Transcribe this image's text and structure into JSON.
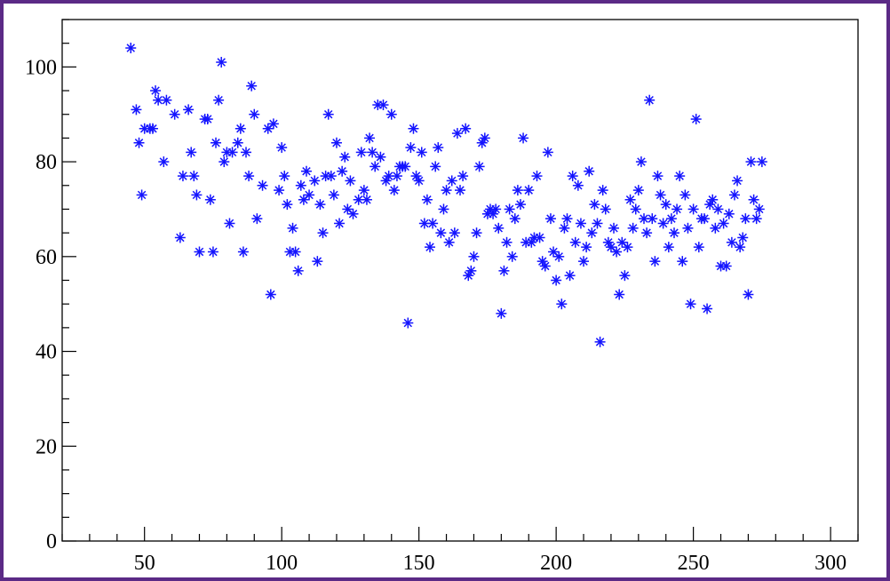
{
  "chart_data": {
    "type": "scatter",
    "title": "",
    "xlabel": "",
    "ylabel": "",
    "xlim": [
      20,
      310
    ],
    "ylim": [
      0,
      110
    ],
    "x_ticks": [
      50,
      100,
      150,
      200,
      250,
      300
    ],
    "y_ticks": [
      0,
      20,
      40,
      60,
      80,
      100
    ],
    "x_tick_labels": [
      "50",
      "100",
      "150",
      "200",
      "250",
      "300"
    ],
    "y_tick_labels": [
      "0",
      "20",
      "40",
      "60",
      "80",
      "100"
    ],
    "grid": false,
    "marker": "asterisk",
    "marker_color": "#1414ff",
    "frame_color": "#5b2a86",
    "series": [
      {
        "points": [
          [
            45,
            104
          ],
          [
            47,
            91
          ],
          [
            48,
            84
          ],
          [
            49,
            73
          ],
          [
            50,
            87
          ],
          [
            52,
            87
          ],
          [
            53,
            87
          ],
          [
            54,
            95
          ],
          [
            55,
            93
          ],
          [
            57,
            80
          ],
          [
            58,
            93
          ],
          [
            61,
            90
          ],
          [
            63,
            64
          ],
          [
            64,
            77
          ],
          [
            66,
            91
          ],
          [
            67,
            82
          ],
          [
            68,
            77
          ],
          [
            69,
            73
          ],
          [
            70,
            61
          ],
          [
            72,
            89
          ],
          [
            73,
            89
          ],
          [
            74,
            72
          ],
          [
            75,
            61
          ],
          [
            76,
            84
          ],
          [
            77,
            93
          ],
          [
            78,
            101
          ],
          [
            79,
            80
          ],
          [
            80,
            82
          ],
          [
            81,
            67
          ],
          [
            82,
            82
          ],
          [
            84,
            84
          ],
          [
            85,
            87
          ],
          [
            86,
            61
          ],
          [
            87,
            82
          ],
          [
            88,
            77
          ],
          [
            89,
            96
          ],
          [
            90,
            90
          ],
          [
            91,
            68
          ],
          [
            93,
            75
          ],
          [
            95,
            87
          ],
          [
            96,
            52
          ],
          [
            97,
            88
          ],
          [
            99,
            74
          ],
          [
            100,
            83
          ],
          [
            101,
            77
          ],
          [
            102,
            71
          ],
          [
            103,
            61
          ],
          [
            104,
            66
          ],
          [
            105,
            61
          ],
          [
            106,
            57
          ],
          [
            107,
            75
          ],
          [
            108,
            72
          ],
          [
            109,
            78
          ],
          [
            110,
            73
          ],
          [
            112,
            76
          ],
          [
            113,
            59
          ],
          [
            114,
            71
          ],
          [
            115,
            65
          ],
          [
            116,
            77
          ],
          [
            117,
            90
          ],
          [
            118,
            77
          ],
          [
            119,
            73
          ],
          [
            120,
            84
          ],
          [
            121,
            67
          ],
          [
            122,
            78
          ],
          [
            123,
            81
          ],
          [
            124,
            70
          ],
          [
            125,
            76
          ],
          [
            126,
            69
          ],
          [
            128,
            72
          ],
          [
            129,
            82
          ],
          [
            130,
            74
          ],
          [
            131,
            72
          ],
          [
            132,
            85
          ],
          [
            133,
            82
          ],
          [
            134,
            79
          ],
          [
            135,
            92
          ],
          [
            136,
            81
          ],
          [
            137,
            92
          ],
          [
            138,
            76
          ],
          [
            139,
            77
          ],
          [
            140,
            90
          ],
          [
            141,
            74
          ],
          [
            142,
            77
          ],
          [
            143,
            79
          ],
          [
            144,
            79
          ],
          [
            145,
            79
          ],
          [
            146,
            46
          ],
          [
            147,
            83
          ],
          [
            148,
            87
          ],
          [
            149,
            77
          ],
          [
            150,
            76
          ],
          [
            151,
            82
          ],
          [
            152,
            67
          ],
          [
            153,
            72
          ],
          [
            154,
            62
          ],
          [
            155,
            67
          ],
          [
            156,
            79
          ],
          [
            157,
            83
          ],
          [
            158,
            65
          ],
          [
            159,
            70
          ],
          [
            160,
            74
          ],
          [
            161,
            63
          ],
          [
            162,
            76
          ],
          [
            163,
            65
          ],
          [
            164,
            86
          ],
          [
            165,
            74
          ],
          [
            166,
            77
          ],
          [
            167,
            87
          ],
          [
            168,
            56
          ],
          [
            169,
            57
          ],
          [
            170,
            60
          ],
          [
            171,
            65
          ],
          [
            172,
            79
          ],
          [
            173,
            84
          ],
          [
            174,
            85
          ],
          [
            175,
            69
          ],
          [
            176,
            70
          ],
          [
            177,
            69
          ],
          [
            178,
            70
          ],
          [
            179,
            66
          ],
          [
            180,
            48
          ],
          [
            181,
            57
          ],
          [
            182,
            63
          ],
          [
            183,
            70
          ],
          [
            184,
            60
          ],
          [
            185,
            68
          ],
          [
            186,
            74
          ],
          [
            187,
            71
          ],
          [
            188,
            85
          ],
          [
            189,
            63
          ],
          [
            190,
            74
          ],
          [
            191,
            63
          ],
          [
            192,
            64
          ],
          [
            193,
            77
          ],
          [
            194,
            64
          ],
          [
            195,
            59
          ],
          [
            196,
            58
          ],
          [
            197,
            82
          ],
          [
            198,
            68
          ],
          [
            199,
            61
          ],
          [
            200,
            55
          ],
          [
            201,
            60
          ],
          [
            202,
            50
          ],
          [
            203,
            66
          ],
          [
            204,
            68
          ],
          [
            205,
            56
          ],
          [
            206,
            77
          ],
          [
            207,
            63
          ],
          [
            208,
            75
          ],
          [
            209,
            67
          ],
          [
            210,
            59
          ],
          [
            211,
            62
          ],
          [
            212,
            78
          ],
          [
            213,
            65
          ],
          [
            214,
            71
          ],
          [
            215,
            67
          ],
          [
            216,
            42
          ],
          [
            217,
            74
          ],
          [
            218,
            70
          ],
          [
            219,
            63
          ],
          [
            220,
            62
          ],
          [
            221,
            66
          ],
          [
            222,
            61
          ],
          [
            223,
            52
          ],
          [
            224,
            63
          ],
          [
            225,
            56
          ],
          [
            226,
            62
          ],
          [
            227,
            72
          ],
          [
            228,
            66
          ],
          [
            229,
            70
          ],
          [
            230,
            74
          ],
          [
            231,
            80
          ],
          [
            232,
            68
          ],
          [
            233,
            65
          ],
          [
            234,
            93
          ],
          [
            235,
            68
          ],
          [
            236,
            59
          ],
          [
            237,
            77
          ],
          [
            238,
            73
          ],
          [
            239,
            67
          ],
          [
            240,
            71
          ],
          [
            241,
            62
          ],
          [
            242,
            68
          ],
          [
            243,
            65
          ],
          [
            244,
            70
          ],
          [
            245,
            77
          ],
          [
            246,
            59
          ],
          [
            247,
            73
          ],
          [
            248,
            66
          ],
          [
            249,
            50
          ],
          [
            250,
            70
          ],
          [
            251,
            89
          ],
          [
            252,
            62
          ],
          [
            253,
            68
          ],
          [
            254,
            68
          ],
          [
            255,
            49
          ],
          [
            256,
            71
          ],
          [
            257,
            72
          ],
          [
            258,
            66
          ],
          [
            259,
            70
          ],
          [
            260,
            58
          ],
          [
            261,
            67
          ],
          [
            262,
            58
          ],
          [
            263,
            69
          ],
          [
            264,
            63
          ],
          [
            265,
            73
          ],
          [
            266,
            76
          ],
          [
            267,
            62
          ],
          [
            268,
            64
          ],
          [
            269,
            68
          ],
          [
            270,
            52
          ],
          [
            271,
            80
          ],
          [
            272,
            72
          ],
          [
            273,
            68
          ],
          [
            274,
            70
          ],
          [
            275,
            80
          ]
        ]
      }
    ]
  }
}
